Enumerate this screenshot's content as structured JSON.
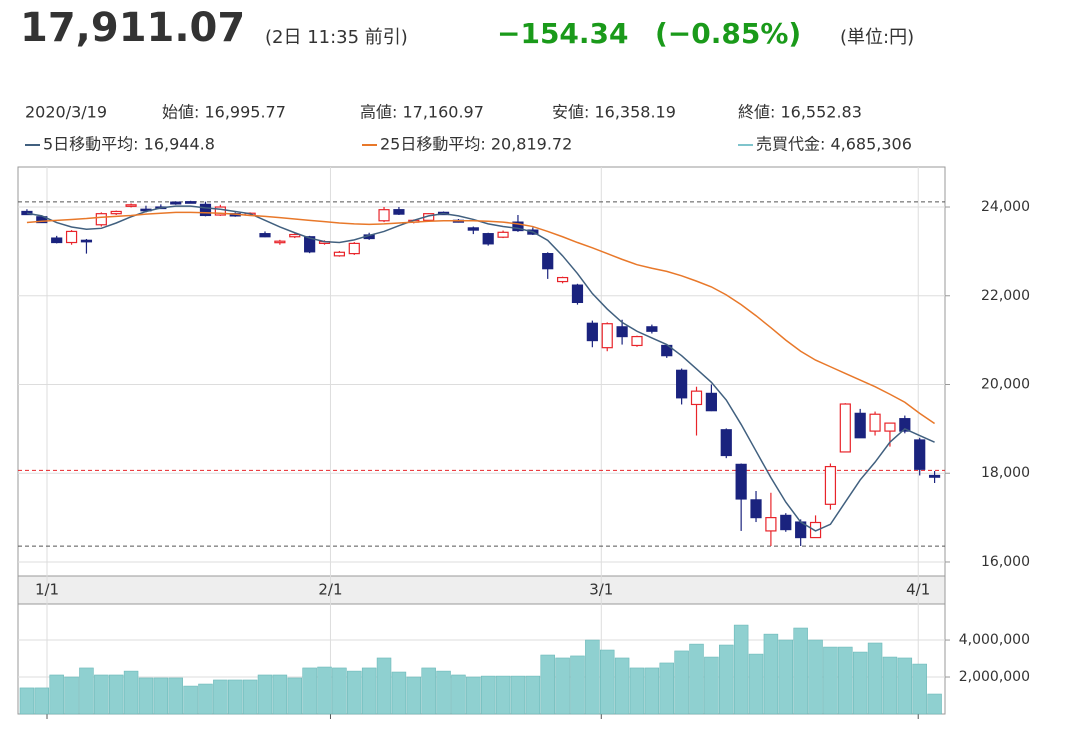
{
  "header": {
    "price": "17,911.07",
    "time": "(2日 11:35 前引)",
    "change": "−154.34",
    "change_pct": "(−0.85%)",
    "unit": "(単位:円)",
    "info": [
      "2020/3/19",
      "始値: 16,995.77",
      "高値: 17,160.97",
      "安値: 16,358.19",
      "終値: 16,552.83"
    ]
  },
  "chart_data": [
    {
      "type": "candlestick",
      "categories": [
        null,
        null,
        null,
        null,
        null,
        null,
        null,
        null,
        null,
        null,
        null,
        null,
        null,
        null,
        null,
        null,
        null,
        null,
        null,
        null,
        null,
        null,
        null,
        null,
        null,
        null,
        null,
        null,
        null,
        null,
        null,
        null,
        null,
        null,
        null,
        null,
        null,
        null,
        null,
        null,
        null,
        null,
        null,
        null,
        null,
        null,
        null,
        null,
        null,
        null,
        null,
        null,
        null,
        null,
        null,
        null,
        null,
        null,
        null,
        null,
        null,
        null
      ],
      "open": [
        23900,
        23780,
        23300,
        23200,
        23250,
        23600,
        23850,
        24020,
        23950,
        24000,
        24110,
        24120,
        24060,
        23820,
        23850,
        23820,
        23400,
        23200,
        23330,
        23330,
        23180,
        22900,
        22950,
        23370,
        23690,
        23940,
        23660,
        23700,
        23880,
        23700,
        23530,
        23400,
        23320,
        23660,
        23480,
        22950,
        22320,
        22240,
        21380,
        20830,
        21300,
        20880,
        21300,
        20880,
        20320,
        19550,
        19800,
        18980,
        18200,
        17400,
        16700,
        17050,
        16900,
        16550,
        17300,
        18480,
        19350,
        18950,
        18950,
        19230,
        18750,
        17950
      ],
      "high": [
        23950,
        23800,
        23350,
        23480,
        23280,
        23880,
        23920,
        24080,
        24030,
        24060,
        24130,
        24140,
        24120,
        24050,
        23880,
        23880,
        23450,
        23260,
        23400,
        23350,
        23250,
        23010,
        23210,
        23420,
        24000,
        24000,
        23720,
        23860,
        23900,
        23730,
        23560,
        23420,
        23470,
        23820,
        23540,
        22980,
        22430,
        22270,
        21440,
        21400,
        21460,
        21100,
        21350,
        20910,
        20360,
        19950,
        20000,
        19010,
        18220,
        17600,
        17560,
        17100,
        16960,
        17050,
        18220,
        19580,
        19450,
        19390,
        19080,
        19300,
        18800,
        18050
      ],
      "low": [
        23820,
        23640,
        23180,
        23150,
        22950,
        23560,
        23820,
        23990,
        23880,
        23960,
        24050,
        24080,
        23790,
        23800,
        23780,
        23800,
        23320,
        23150,
        23300,
        22960,
        23150,
        22880,
        22920,
        23260,
        23660,
        23820,
        23630,
        23680,
        23820,
        23650,
        23390,
        23130,
        23300,
        23440,
        23370,
        22380,
        22280,
        21800,
        20840,
        20750,
        20900,
        20850,
        21150,
        20600,
        19550,
        18850,
        19400,
        18340,
        16700,
        16900,
        16360,
        16680,
        16360,
        16550,
        17180,
        18480,
        18800,
        18850,
        18600,
        18900,
        17950,
        17780
      ],
      "close": [
        23830,
        23650,
        23200,
        23450,
        23220,
        23850,
        23900,
        24050,
        23930,
        23980,
        24070,
        24110,
        23810,
        24000,
        23800,
        23860,
        23330,
        23230,
        23380,
        22990,
        23220,
        22980,
        23180,
        23290,
        23940,
        23840,
        23700,
        23850,
        23830,
        23660,
        23480,
        23170,
        23430,
        23470,
        23390,
        22610,
        22410,
        21850,
        20990,
        21370,
        21080,
        21080,
        21200,
        20650,
        19700,
        19850,
        19410,
        18400,
        17420,
        17000,
        17000,
        16730,
        16550,
        16890,
        18150,
        19560,
        18800,
        19330,
        19130,
        18950,
        18090,
        17911.07
      ],
      "up_color": "#e8242a",
      "down_color": "#1a237e",
      "series": [
        {
          "name": "5日移動平均: 16,944.8",
          "color": "#41607f",
          "values": [
            23860,
            23800,
            23650,
            23550,
            23500,
            23520,
            23640,
            23780,
            23900,
            23980,
            24020,
            24020,
            23980,
            23950,
            23900,
            23850,
            23700,
            23550,
            23420,
            23300,
            23220,
            23200,
            23260,
            23360,
            23450,
            23580,
            23700,
            23800,
            23850,
            23800,
            23720,
            23620,
            23560,
            23520,
            23440,
            23250,
            22900,
            22500,
            22050,
            21700,
            21400,
            21200,
            21050,
            20900,
            20650,
            20350,
            20050,
            19650,
            19100,
            18500,
            17900,
            17350,
            16900,
            16700,
            16850,
            17350,
            17850,
            18250,
            18700,
            19000,
            18850,
            18700
          ]
        },
        {
          "name": "25日移動平均: 20,819.72",
          "color": "#e8782a",
          "values": [
            23650,
            23680,
            23700,
            23720,
            23740,
            23770,
            23790,
            23810,
            23840,
            23860,
            23880,
            23880,
            23870,
            23860,
            23840,
            23810,
            23790,
            23760,
            23730,
            23700,
            23670,
            23640,
            23620,
            23610,
            23620,
            23640,
            23660,
            23680,
            23690,
            23690,
            23690,
            23680,
            23660,
            23620,
            23560,
            23450,
            23330,
            23200,
            23080,
            22950,
            22820,
            22700,
            22620,
            22550,
            22450,
            22330,
            22200,
            22020,
            21800,
            21550,
            21280,
            21000,
            20750,
            20550,
            20400,
            20250,
            20100,
            19950,
            19780,
            19600,
            19350,
            19120
          ]
        }
      ],
      "reference_lines": [
        {
          "value": 24115.95,
          "color": "#555555"
        },
        {
          "value": 16358.19,
          "color": "#555555"
        },
        {
          "value": 18065.41,
          "color": "#e8242a"
        }
      ],
      "xlim": [
        -0.6,
        61.7
      ],
      "xticks": [
        {
          "value": 1.35,
          "label": "1/1"
        },
        {
          "value": 20.4,
          "label": "2/1"
        },
        {
          "value": 38.6,
          "label": "3/1"
        },
        {
          "value": 59.9,
          "label": "4/1"
        }
      ],
      "ylim": [
        15684,
        24902
      ],
      "yticks": [
        {
          "value": 16000,
          "label": "16,000"
        },
        {
          "value": 18000,
          "label": "18,000"
        },
        {
          "value": 20000,
          "label": "20,000"
        },
        {
          "value": 22000,
          "label": "22,000"
        },
        {
          "value": 24000,
          "label": "24,000"
        }
      ],
      "grid": true
    },
    {
      "type": "bar",
      "name": "売買代金: 4,685,306",
      "color": "#8fd0d0",
      "legend_color": "#7fc4cc",
      "values": [
        1410000,
        1410000,
        2110000,
        2000000,
        2490000,
        2110000,
        2110000,
        2320000,
        1950000,
        1950000,
        1950000,
        1510000,
        1620000,
        1840000,
        1840000,
        1840000,
        2110000,
        2110000,
        1950000,
        2490000,
        2540000,
        2490000,
        2320000,
        2490000,
        3030000,
        2270000,
        2000000,
        2490000,
        2320000,
        2110000,
        2000000,
        2050000,
        2050000,
        2050000,
        2050000,
        3190000,
        3030000,
        3140000,
        4000000,
        3460000,
        3030000,
        2490000,
        2490000,
        2760000,
        3410000,
        3780000,
        3080000,
        3730000,
        4810000,
        3240000,
        4320000,
        4000000,
        4650000,
        4000000,
        3620000,
        3620000,
        3350000,
        3840000,
        3080000,
        3030000,
        2700000,
        1080000
      ],
      "xlim": [
        -0.6,
        61.7
      ],
      "ylim": [
        0,
        5950000
      ],
      "yticks": [
        {
          "value": 2000000,
          "label": "2,000,000"
        },
        {
          "value": 4000000,
          "label": "4,000,000"
        }
      ],
      "grid": true
    }
  ]
}
